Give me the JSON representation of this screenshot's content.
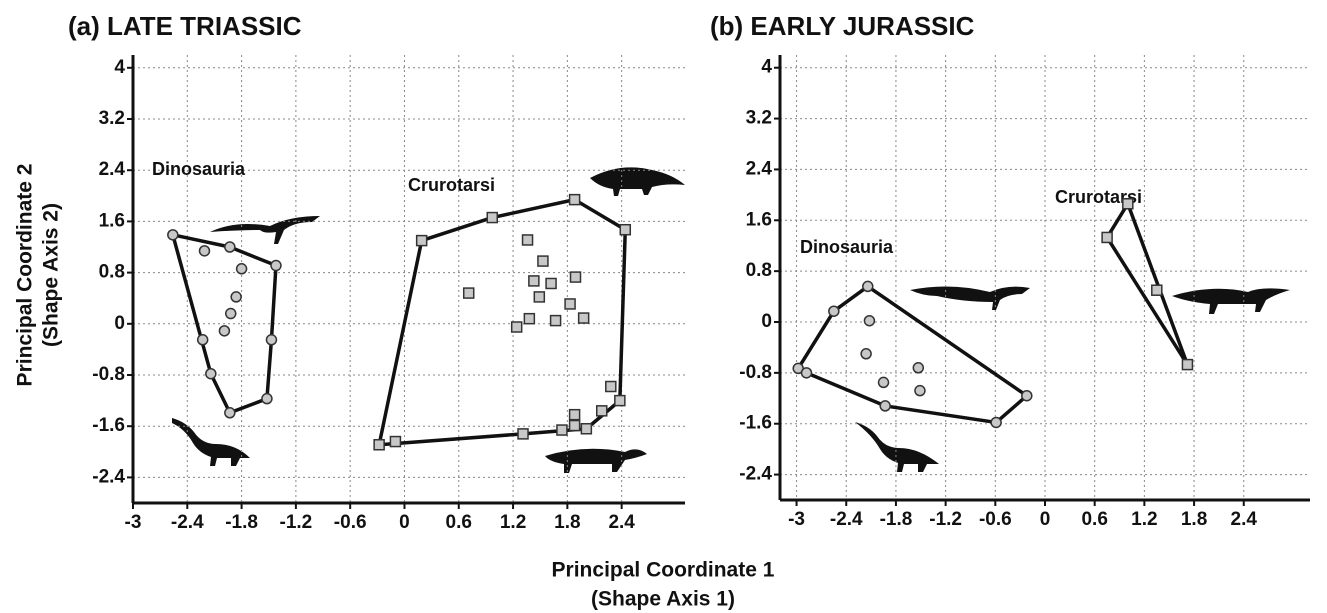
{
  "axis_labels": {
    "x": [
      "Principal Coordinate 1",
      "(Shape Axis 1)"
    ],
    "y": [
      "Principal Coordinate 2",
      "(Shape Axis 2)"
    ]
  },
  "chart_data": [
    {
      "type": "scatter",
      "title": "(a) LATE TRIASSIC",
      "grid": true,
      "hull": true,
      "xlim": [
        -3,
        3.1
      ],
      "ylim": [
        -2.8,
        4.2
      ],
      "xticks": [
        -3,
        -2.4,
        -1.8,
        -1.2,
        -0.6,
        0,
        0.6,
        1.2,
        1.8,
        2.4
      ],
      "yticks": [
        -2.4,
        -1.6,
        -0.8,
        0,
        0.8,
        1.6,
        2.4,
        3.2,
        4
      ],
      "series": [
        {
          "name": "Dinosauria",
          "marker": "circle",
          "color": "#c8c8c8",
          "x": [
            -2.56,
            -1.93,
            -1.42,
            -1.47,
            -1.52,
            -1.93,
            -2.14,
            -2.23,
            -2.21,
            -1.8,
            -1.86,
            -1.92,
            -1.99
          ],
          "y": [
            1.39,
            1.2,
            0.91,
            -0.25,
            -1.17,
            -1.39,
            -0.78,
            -0.25,
            1.14,
            0.86,
            0.42,
            0.16,
            -0.11
          ]
        },
        {
          "name": "Crurotarsi",
          "marker": "square",
          "color": "#c8c8c8",
          "x": [
            0.19,
            0.97,
            1.88,
            2.44,
            2.38,
            2.01,
            1.31,
            -0.1,
            -0.28,
            1.36,
            1.53,
            0.71,
            1.43,
            1.62,
            1.89,
            1.49,
            1.83,
            1.38,
            1.67,
            1.98,
            1.24,
            2.28,
            2.18,
            1.88,
            1.88,
            1.74
          ],
          "y": [
            1.3,
            1.66,
            1.94,
            1.47,
            -1.2,
            -1.64,
            -1.72,
            -1.84,
            -1.89,
            1.31,
            0.98,
            0.48,
            0.67,
            0.63,
            0.73,
            0.42,
            0.31,
            0.08,
            0.05,
            0.09,
            -0.05,
            -0.98,
            -1.36,
            -1.42,
            -1.59,
            -1.66
          ]
        }
      ]
    },
    {
      "type": "scatter",
      "title": "(b)  EARLY JURASSIC",
      "grid": true,
      "hull": true,
      "xlim": [
        -3.2,
        3.2
      ],
      "ylim": [
        -2.8,
        4.2
      ],
      "xticks": [
        -3,
        -2.4,
        -1.8,
        -1.2,
        -0.6,
        0,
        0.6,
        1.2,
        1.8,
        2.4
      ],
      "yticks": [
        -2.4,
        -1.6,
        -0.8,
        0,
        0.8,
        1.6,
        2.4,
        3.2,
        4
      ],
      "series": [
        {
          "name": "Dinosauria",
          "marker": "circle",
          "color": "#c8c8c8",
          "x": [
            -2.98,
            -2.88,
            -2.55,
            -2.14,
            -0.22,
            -0.59,
            -1.93,
            -2.12,
            -2.16,
            -1.95,
            -1.53,
            -1.51
          ],
          "y": [
            -0.73,
            -0.8,
            0.17,
            0.56,
            -1.16,
            -1.58,
            -1.32,
            0.02,
            -0.5,
            -0.95,
            -0.72,
            -1.08
          ]
        },
        {
          "name": "Crurotarsi",
          "marker": "square",
          "color": "#c8c8c8",
          "x": [
            0.75,
            1.0,
            1.35,
            1.72
          ],
          "y": [
            1.33,
            1.86,
            0.5,
            -0.67
          ]
        }
      ]
    }
  ]
}
